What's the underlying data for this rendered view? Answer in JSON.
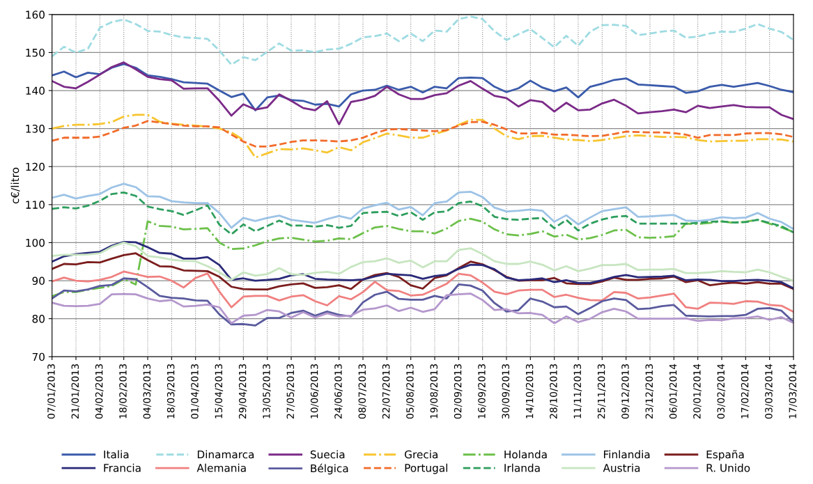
{
  "chart_data": {
    "type": "line",
    "ylabel": "c€/litro",
    "categories": [
      "07/01/2013",
      null,
      "21/01/2013",
      null,
      "04/02/2013",
      null,
      "18/02/2013",
      null,
      "04/03/2013",
      null,
      "18/03/2013",
      null,
      "01/04/2013",
      null,
      "15/04/2013",
      null,
      "29/04/2013",
      null,
      "13/05/2013",
      null,
      "27/05/2013",
      null,
      "10/06/2013",
      null,
      "24/06/2013",
      null,
      "08/07/2013",
      null,
      "22/07/2013",
      null,
      "05/08/2013",
      null,
      "19/08/2013",
      null,
      "02/09/2013",
      null,
      "16/09/2013",
      null,
      "30/09/2013",
      null,
      "14/10/2013",
      null,
      "28/10/2013",
      null,
      "11/11/2013",
      null,
      "25/11/2013",
      null,
      "09/12/2013",
      null,
      "23/12/2013",
      null,
      "06/01/2014",
      null,
      "20/01/2014",
      null,
      "03/02/2014",
      null,
      "17/02/2014",
      null,
      "03/03/2014",
      null,
      "17/03/2014"
    ],
    "ylim": [
      70,
      160
    ],
    "yticks": [
      70,
      80,
      90,
      100,
      110,
      120,
      130,
      140,
      150,
      160
    ],
    "grid": true,
    "legend": "bottom",
    "marker": "none",
    "series": [
      {
        "name": "Italia",
        "color": "#3a5bab",
        "line_style": "solid",
        "values": [
          144,
          145,
          143.5,
          144.7,
          144.3,
          146,
          147,
          146,
          144,
          143.6,
          143,
          142.2,
          142,
          141.8,
          140,
          138.3,
          139.2,
          134.8,
          138.2,
          138.7,
          137.5,
          137.3,
          136.3,
          136.5,
          135.8,
          139,
          140,
          140.2,
          141.3,
          140.2,
          141,
          139.5,
          141,
          140.6,
          143.3,
          143.4,
          143.3,
          141,
          139.6,
          140.6,
          142.6,
          140.8,
          139.8,
          140.8,
          138.2,
          141,
          141.8,
          142.8,
          143.2,
          141.6,
          141.4,
          141.2,
          141,
          139.4,
          139.8,
          141,
          141.5,
          141,
          141.5,
          142,
          141.2,
          140.2,
          139.6
        ]
      },
      {
        "name": "Dinamarca",
        "color": "#9edbe2",
        "line_style": "dashed",
        "values": [
          149,
          151.5,
          150,
          151,
          156.5,
          158,
          158.7,
          157.5,
          155.7,
          155.5,
          154.6,
          154,
          153.8,
          153.6,
          150.5,
          146.8,
          148.8,
          148,
          150.2,
          152.4,
          150.5,
          150.6,
          150.1,
          150.8,
          151,
          152.3,
          154,
          154.3,
          155,
          153,
          155,
          153,
          155.8,
          155.5,
          158.8,
          159.5,
          158.8,
          155.6,
          153.3,
          154.8,
          156.2,
          153.8,
          151.4,
          154.4,
          151.8,
          155.5,
          157.2,
          157.3,
          157,
          154.6,
          155,
          155.5,
          155.8,
          153.9,
          154.2,
          155,
          155.5,
          155.4,
          156.3,
          157.5,
          156.3,
          155.4,
          153.3
        ]
      },
      {
        "name": "Suecia",
        "color": "#7b2a88",
        "line_style": "solid",
        "values": [
          142.5,
          141,
          140.6,
          142.3,
          144.2,
          146.2,
          147.4,
          145.6,
          143.6,
          143,
          142.7,
          140.5,
          140.6,
          140.6,
          137.3,
          133.4,
          136.4,
          135,
          135.6,
          139,
          137.3,
          135.4,
          134.8,
          137.2,
          131.1,
          137,
          137.6,
          138.6,
          141,
          139,
          137.8,
          137.8,
          138.8,
          139.3,
          141.3,
          142.5,
          140.5,
          138.6,
          138,
          135.8,
          137.5,
          137,
          134.5,
          136.8,
          134.8,
          135,
          136.6,
          137.6,
          136,
          134,
          134.3,
          134.6,
          135,
          134.3,
          136,
          135.4,
          135.8,
          136.2,
          135.7,
          135.6,
          135.6,
          133.6,
          132.5
        ]
      },
      {
        "name": "Grecia",
        "color": "#f7c530",
        "line_style": "dashdot",
        "values": [
          130,
          130.7,
          131,
          131,
          131.2,
          131.7,
          133.2,
          133.6,
          133.6,
          131.8,
          131.3,
          131,
          130.8,
          130.5,
          130,
          129,
          127,
          122.4,
          123.5,
          124.6,
          124.5,
          124.8,
          124.3,
          123.7,
          125.1,
          124.3,
          126.4,
          127.5,
          128.7,
          128.2,
          127.6,
          127.6,
          128.6,
          129.5,
          131,
          132.3,
          132.3,
          130,
          128,
          127.2,
          128,
          128.1,
          127.6,
          127.1,
          127,
          126.7,
          127,
          127.5,
          128,
          128.2,
          128,
          127.8,
          127.8,
          127.7,
          127,
          126.6,
          126.7,
          126.8,
          126.8,
          127.2,
          127.2,
          127.1,
          126.6
        ]
      },
      {
        "name": "Holanda",
        "color": "#6cc04a",
        "line_style": "dashdot",
        "values": [
          85.9,
          87,
          87,
          87.6,
          88.1,
          88.6,
          90.4,
          89,
          105.6,
          104.4,
          104.2,
          103.5,
          103.6,
          103.8,
          100,
          98.3,
          98.5,
          99.3,
          100.4,
          101.1,
          101.3,
          100.8,
          100.3,
          100.5,
          101.1,
          100.9,
          102.5,
          104,
          104.4,
          103.6,
          103,
          103,
          102.4,
          103.7,
          105.7,
          106.3,
          105.5,
          103.5,
          102.2,
          101.9,
          102.3,
          103,
          101.6,
          102.1,
          100.8,
          101.2,
          102,
          103.2,
          103.4,
          101.4,
          101.3,
          101.4,
          101.7,
          105,
          104.9,
          105.2,
          105.6,
          105.2,
          105.5,
          106,
          105,
          104,
          102.8
        ]
      },
      {
        "name": "Finlandia",
        "color": "#9dc3e6",
        "line_style": "solid",
        "values": [
          111.8,
          112.6,
          111.6,
          112.3,
          112.8,
          114.5,
          115.5,
          114.6,
          112.2,
          112.1,
          110.9,
          110.6,
          110.4,
          110.4,
          107.8,
          103.9,
          106.5,
          105.7,
          106.5,
          107.1,
          106,
          105.6,
          105.2,
          106.2,
          107,
          106.3,
          109,
          109.8,
          110.5,
          108.7,
          109.4,
          107.2,
          110.4,
          110.8,
          113.2,
          113.4,
          112,
          109.2,
          108.2,
          108.4,
          108.7,
          108.4,
          105.5,
          107.2,
          104.8,
          106.6,
          108.3,
          108.8,
          109.3,
          106.8,
          106.9,
          107.1,
          107.3,
          105.8,
          105.7,
          106,
          106.7,
          106.4,
          106.6,
          107.8,
          106.3,
          105.4,
          103.6
        ]
      },
      {
        "name": "España",
        "color": "#7b1d1d",
        "line_style": "solid",
        "values": [
          93.1,
          94.4,
          94.3,
          94.9,
          94.8,
          95.8,
          96.7,
          97.2,
          95.4,
          93.8,
          93.7,
          92.7,
          92.6,
          92.5,
          91,
          88.4,
          87.8,
          87.7,
          87.7,
          88.5,
          89,
          89.3,
          88.1,
          88.3,
          88.8,
          87.8,
          90.3,
          91.5,
          92,
          91,
          88.8,
          87.9,
          90.7,
          91.4,
          93.3,
          95,
          94.3,
          92.8,
          91,
          90,
          90.1,
          90.1,
          90.7,
          89.3,
          89.1,
          89.1,
          89.8,
          90.8,
          90.2,
          90.2,
          90.5,
          90.6,
          91.1,
          89.6,
          90.1,
          88.8,
          89.2,
          89.5,
          89.2,
          89.6,
          89.2,
          89.2,
          87.8
        ]
      },
      {
        "name": "Francia",
        "color": "#2a2a7a",
        "line_style": "solid",
        "values": [
          95,
          96.4,
          97,
          97.3,
          97.6,
          99.2,
          100.2,
          100.1,
          98.8,
          97.3,
          97.1,
          95.8,
          95.8,
          96.2,
          94.1,
          90.2,
          90.6,
          90,
          90.2,
          90.5,
          91.4,
          91.7,
          90.5,
          90.3,
          90.2,
          90.1,
          90.3,
          91.1,
          91.8,
          91.6,
          91.4,
          90.5,
          91.2,
          91.6,
          93.1,
          94.2,
          94.1,
          93,
          90.8,
          90.1,
          90.3,
          90.6,
          89.6,
          90.1,
          89.4,
          89.4,
          90.1,
          91,
          91.5,
          90.9,
          91,
          91.1,
          91.3,
          90.1,
          90.3,
          90.2,
          89.9,
          89.9,
          90.1,
          90.2,
          90,
          89.6,
          88
        ]
      },
      {
        "name": "Alemania",
        "color": "#f08080",
        "line_style": "solid",
        "values": [
          89.8,
          90.8,
          90,
          89.8,
          90.2,
          91,
          92.4,
          91.7,
          91,
          91.1,
          90,
          88.2,
          90.7,
          91.9,
          87.1,
          83,
          85.8,
          86,
          86,
          84.8,
          85.8,
          86.2,
          84.6,
          83.5,
          85.9,
          85.1,
          87,
          89.7,
          87.5,
          87.3,
          86.1,
          86.3,
          87.7,
          89.2,
          91.8,
          91.4,
          89.5,
          87.1,
          86.4,
          87.4,
          87.6,
          87.6,
          85.7,
          86.3,
          85.5,
          84.9,
          84.8,
          87,
          86.8,
          85.3,
          85.6,
          86.1,
          86.6,
          83,
          82.6,
          84.2,
          84.1,
          83.9,
          84.6,
          84.5,
          83.6,
          83.4,
          81.8
        ]
      },
      {
        "name": "Bélgica",
        "color": "#5a5a9e",
        "line_style": "solid",
        "values": [
          85.3,
          87.4,
          87.2,
          87.7,
          88.6,
          88.9,
          90.6,
          90.4,
          88.3,
          86,
          85.5,
          85.3,
          84.8,
          84.7,
          81.1,
          78.5,
          78.6,
          78.2,
          80.2,
          80.2,
          81.5,
          82.1,
          80.8,
          81.9,
          81,
          80.6,
          84.3,
          86.3,
          87.1,
          85.2,
          85,
          85,
          86,
          85.3,
          89,
          88.7,
          87.4,
          84.1,
          81.9,
          82.2,
          85.3,
          84.5,
          83,
          83.2,
          81.2,
          82.8,
          84.6,
          85.3,
          84.9,
          82.5,
          82.7,
          83.3,
          83.6,
          80.8,
          80.7,
          80.6,
          80.7,
          80.7,
          81,
          82.6,
          82.8,
          82.1,
          79.1
        ]
      },
      {
        "name": "Portugal",
        "color": "#f26b2a",
        "line_style": "dashed",
        "values": [
          126.8,
          127.6,
          127.6,
          127.6,
          127.9,
          129,
          130.2,
          130.8,
          132,
          131.6,
          131.2,
          130.8,
          130.6,
          130.6,
          130.3,
          128.4,
          126.6,
          125.3,
          125.3,
          125.8,
          126.5,
          126.9,
          126.9,
          126.8,
          126.6,
          126.9,
          127.6,
          128.8,
          129.7,
          129.9,
          129.7,
          129.5,
          129.3,
          129.6,
          130.8,
          131.7,
          131.8,
          131,
          129.8,
          128.7,
          128.7,
          128.9,
          128.4,
          128.4,
          128.2,
          128,
          128.1,
          128.6,
          129.2,
          129.1,
          129,
          129,
          128.8,
          128.4,
          127.6,
          128.3,
          128.3,
          128.3,
          128.7,
          128.8,
          128.8,
          128.5,
          127.8
        ]
      },
      {
        "name": "Irlanda",
        "color": "#2e9e5e",
        "line_style": "dashed",
        "values": [
          108.9,
          109.3,
          109,
          109.7,
          111,
          112.8,
          113.2,
          112.3,
          109.5,
          108.8,
          108.3,
          107.3,
          108.5,
          109.8,
          104.7,
          102.2,
          104.8,
          103,
          104.4,
          105.8,
          104.5,
          104.5,
          104.2,
          104.6,
          103.9,
          104.4,
          107.8,
          108,
          108.1,
          107,
          108,
          106,
          108,
          108.2,
          110.4,
          110.8,
          109.6,
          106.8,
          106.2,
          106,
          106.3,
          106.5,
          103.8,
          106,
          103.2,
          105,
          106.1,
          106.8,
          107,
          105,
          105,
          105,
          105,
          105,
          105.2,
          105.5,
          105.6,
          105.3,
          105.4,
          106,
          105.2,
          104.3,
          102.7
        ]
      },
      {
        "name": "Austria",
        "color": "#c7e5c0",
        "line_style": "solid",
        "values": [
          96.5,
          96.8,
          96.8,
          96.9,
          97.2,
          98.9,
          100,
          99.1,
          96.5,
          96.1,
          95.5,
          95.2,
          95.1,
          93.8,
          92.2,
          90.2,
          92.2,
          91.3,
          91.7,
          93.3,
          91.7,
          91.5,
          92.1,
          92.3,
          91.8,
          93.6,
          94.9,
          95.1,
          95.9,
          94.7,
          95.3,
          93.5,
          95.1,
          95.1,
          98.1,
          98.5,
          97,
          95.1,
          94.4,
          94.4,
          95,
          94.2,
          92.7,
          93.8,
          92.5,
          93.2,
          94.1,
          94.1,
          94.4,
          92.8,
          92.9,
          92.9,
          93.1,
          92,
          92,
          92.2,
          92.5,
          92.3,
          92.2,
          92.9,
          92.2,
          91,
          90
        ]
      },
      {
        "name": "R. Unido",
        "color": "#b497cc",
        "line_style": "solid",
        "values": [
          84.2,
          83.4,
          83.3,
          83.4,
          83.9,
          86.4,
          86.5,
          86.4,
          85.3,
          84.6,
          84.9,
          83.2,
          83.4,
          83.7,
          83,
          78.8,
          80.8,
          81,
          82.3,
          81.9,
          80.3,
          81.7,
          80.3,
          81.4,
          80.6,
          80.8,
          82.4,
          82.7,
          83.5,
          82,
          82.9,
          81.8,
          82.5,
          86.2,
          86.4,
          86.6,
          84.9,
          82.3,
          82.5,
          81.4,
          81.5,
          81,
          78.8,
          80.6,
          79.1,
          80,
          81.7,
          82.6,
          81.9,
          80,
          80,
          80,
          80,
          80.1,
          79.4,
          79.7,
          79.6,
          80.1,
          80.2,
          80.6,
          79.7,
          80.4,
          78.9
        ]
      }
    ]
  }
}
